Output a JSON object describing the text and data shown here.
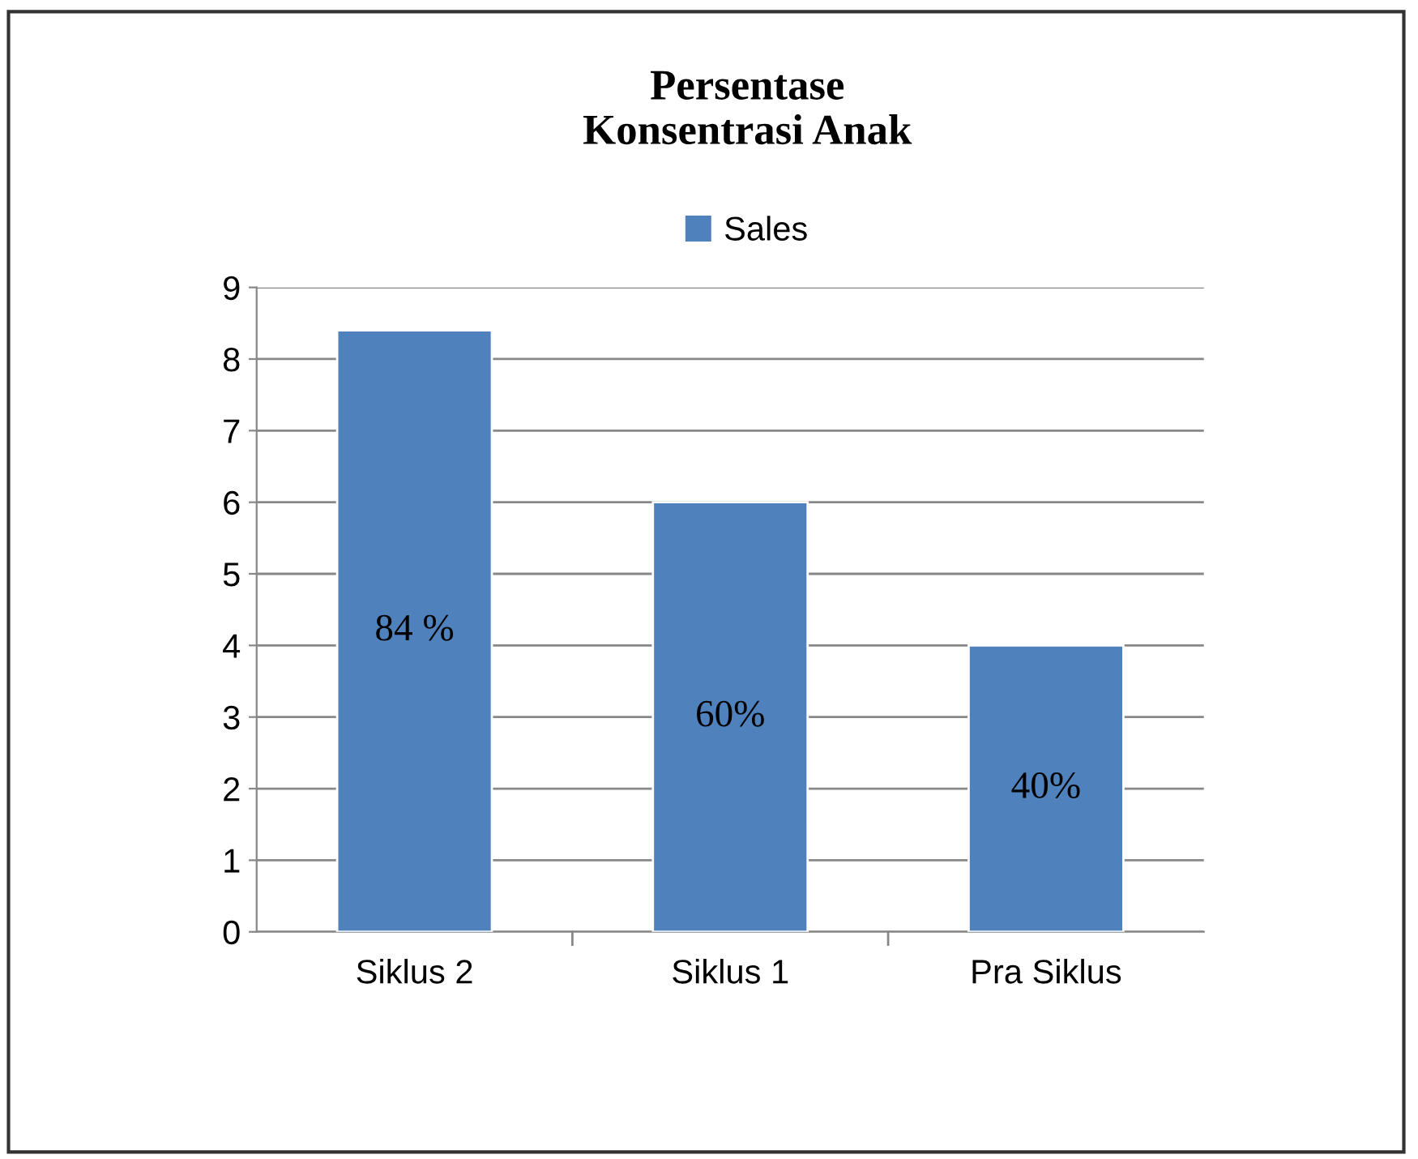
{
  "chart_data": {
    "type": "bar",
    "title": "Persentase\nKonsentrasi Anak",
    "categories": [
      "Siklus 2",
      "Siklus 1",
      "Pra Siklus"
    ],
    "series": [
      {
        "name": "Sales",
        "color": "#4f81bd",
        "values": [
          8.4,
          6,
          4
        ]
      }
    ],
    "annotations": [
      "84 %",
      "60%",
      "40%"
    ],
    "ylim": [
      0,
      9
    ],
    "yticks": [
      0,
      1,
      2,
      3,
      4,
      5,
      6,
      7,
      8,
      9
    ],
    "grid": "y",
    "legend": "top"
  }
}
